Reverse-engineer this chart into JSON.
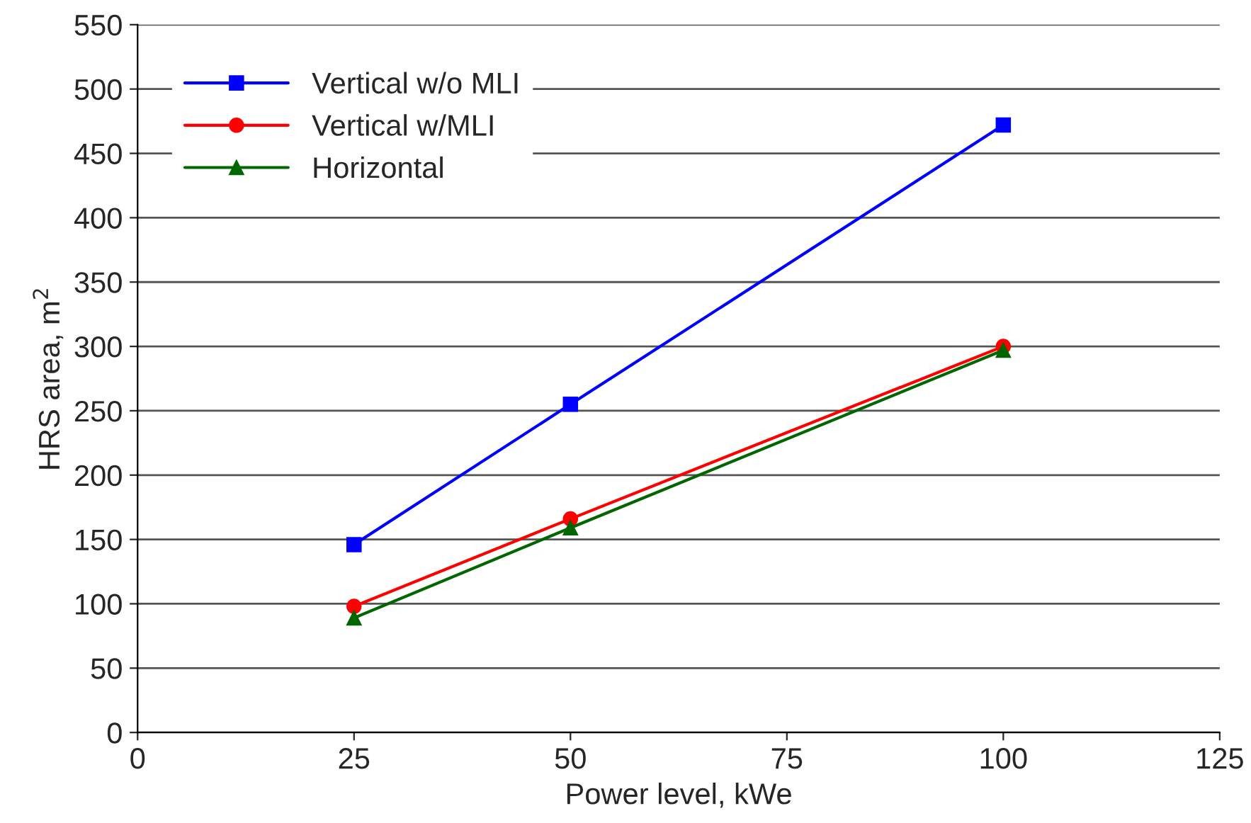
{
  "chart_data": {
    "type": "line",
    "xlabel": "Power level, kWe",
    "ylabel": "HRS area, m$^{2}$",
    "x": [
      25,
      50,
      100
    ],
    "series": [
      {
        "name": "Vertical w/o MLI",
        "color": "#0000ff",
        "marker": "square",
        "values": [
          146,
          255,
          472
        ]
      },
      {
        "name": "Vertical w/MLI",
        "color": "#ff0000",
        "marker": "circle",
        "values": [
          98,
          166,
          300
        ]
      },
      {
        "name": "Horizontal",
        "color": "#006600",
        "marker": "triangle",
        "values": [
          89,
          159,
          297
        ]
      }
    ],
    "xlim": [
      0,
      125
    ],
    "xticks": [
      0,
      25,
      50,
      75,
      100,
      125
    ],
    "ylim": [
      0,
      550
    ],
    "yticks": [
      0,
      50,
      100,
      150,
      200,
      250,
      300,
      350,
      400,
      450,
      500,
      550
    ],
    "grid": "y",
    "legend": "top left",
    "line_style": "solid"
  }
}
